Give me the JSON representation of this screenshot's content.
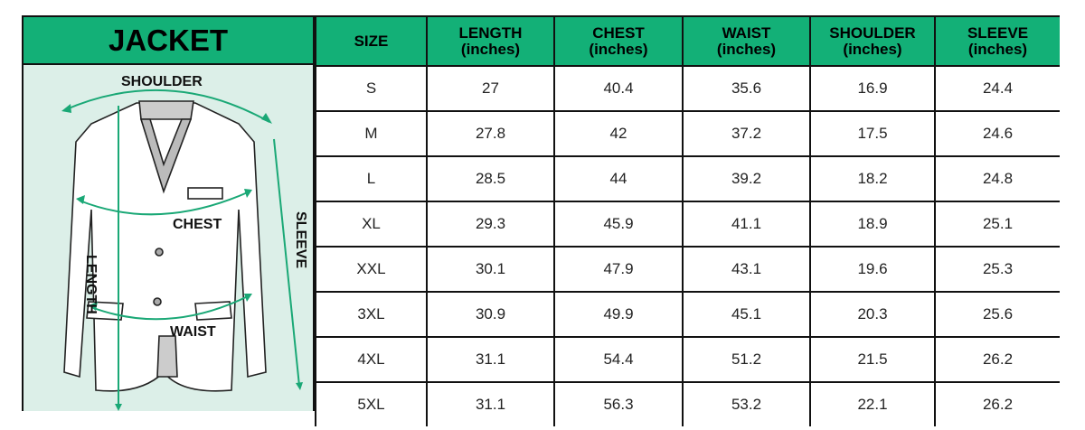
{
  "title": "JACKET",
  "diagram_labels": {
    "shoulder": "SHOULDER",
    "chest": "CHEST",
    "length": "LENGTH",
    "waist": "WAIST",
    "sleeve": "SLEEVE"
  },
  "columns": [
    {
      "label": "SIZE",
      "unit": ""
    },
    {
      "label": "LENGTH",
      "unit": "(inches)"
    },
    {
      "label": "CHEST",
      "unit": "(inches)"
    },
    {
      "label": "WAIST",
      "unit": "(inches)"
    },
    {
      "label": "SHOULDER",
      "unit": "(inches)"
    },
    {
      "label": "SLEEVE",
      "unit": "(inches)"
    }
  ],
  "rows": [
    [
      "S",
      "27",
      "40.4",
      "35.6",
      "16.9",
      "24.4"
    ],
    [
      "M",
      "27.8",
      "42",
      "37.2",
      "17.5",
      "24.6"
    ],
    [
      "L",
      "28.5",
      "44",
      "39.2",
      "18.2",
      "24.8"
    ],
    [
      "XL",
      "29.3",
      "45.9",
      "41.1",
      "18.9",
      "25.1"
    ],
    [
      "XXL",
      "30.1",
      "47.9",
      "43.1",
      "19.6",
      "25.3"
    ],
    [
      "3XL",
      "30.9",
      "49.9",
      "45.1",
      "20.3",
      "25.6"
    ],
    [
      "4XL",
      "31.1",
      "54.4",
      "51.2",
      "21.5",
      "26.2"
    ],
    [
      "5XL",
      "31.1",
      "56.3",
      "53.2",
      "22.1",
      "26.2"
    ]
  ],
  "colors": {
    "header_green": "#13b077",
    "panel_bg": "#dcefe8",
    "arrow_green": "#1aa876"
  }
}
